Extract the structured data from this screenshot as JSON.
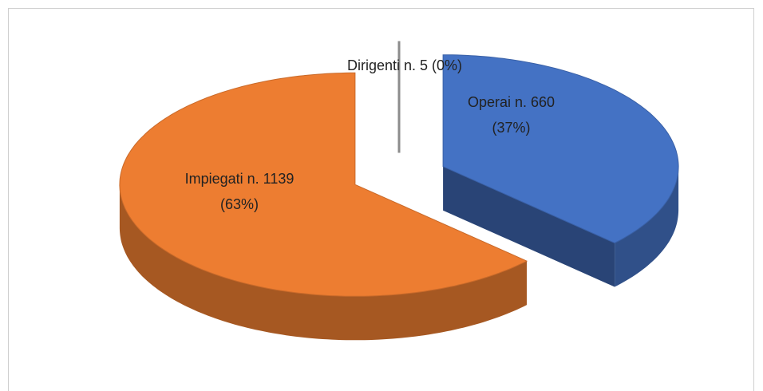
{
  "chart_data": {
    "type": "pie",
    "values": [
      0,
      37,
      63
    ],
    "value_labels": [
      "Dirigenti n. 5 (0%)",
      "Operai n. 660 (37%)",
      "Impiegati n. 1139 (63%)"
    ],
    "colors": [
      "#a5a5a5",
      "#4472c4",
      "#ed7d31"
    ]
  }
}
